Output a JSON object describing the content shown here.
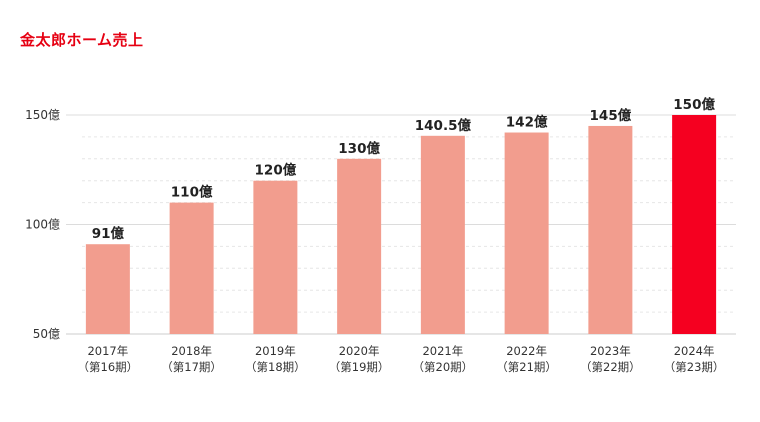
{
  "chart_data": {
    "type": "bar",
    "title": "金太郎ホーム売上",
    "categories": [
      [
        "2017年",
        "（第16期）"
      ],
      [
        "2018年",
        "（第17期）"
      ],
      [
        "2019年",
        "（第18期）"
      ],
      [
        "2020年",
        "（第19期）"
      ],
      [
        "2021年",
        "（第20期）"
      ],
      [
        "2022年",
        "（第21期）"
      ],
      [
        "2023年",
        "（第22期）"
      ],
      [
        "2024年",
        "（第23期）"
      ]
    ],
    "values": [
      91,
      110,
      120,
      130,
      140.5,
      142,
      145,
      150
    ],
    "data_labels": [
      "91億",
      "110億",
      "120億",
      "130億",
      "140.5億",
      "142億",
      "145億",
      "150億"
    ],
    "unit": "億",
    "ylim": [
      50,
      150
    ],
    "yticks": [
      50,
      100,
      150
    ],
    "ytick_labels": [
      "50億",
      "100億",
      "150億"
    ],
    "grid": true,
    "xlabel": "",
    "ylabel": "",
    "colors": {
      "title": "#e60012",
      "bar": "#f29d8e",
      "highlight_bar": "#f50020",
      "highlight_index": 7,
      "grid_major": "#dcdcdc",
      "grid_minor": "#e6e6e6",
      "axis": "#cccccc"
    }
  }
}
